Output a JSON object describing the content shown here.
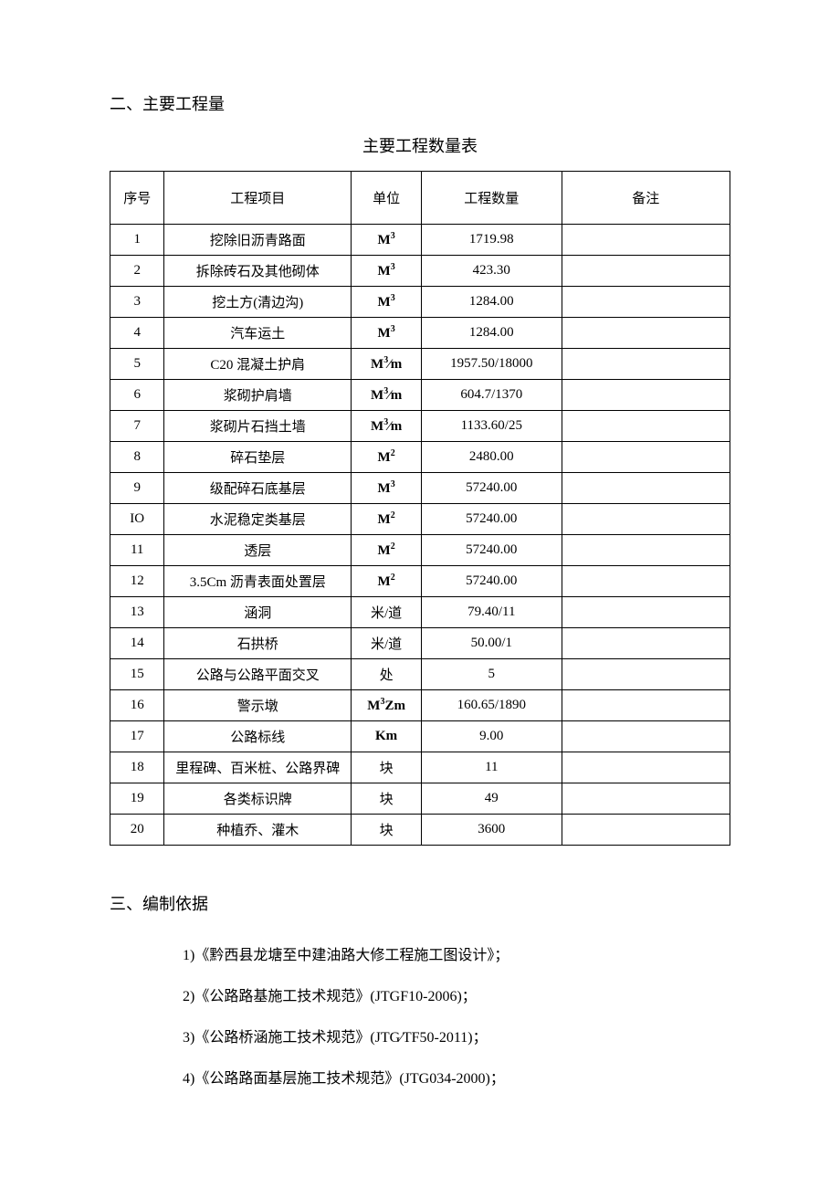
{
  "section2": {
    "title": "二、主要工程量",
    "table_title": "主要工程数量表",
    "columns": [
      "序号",
      "工程项目",
      "单位",
      "工程数量",
      "备注"
    ],
    "rows": [
      {
        "seq": "1",
        "item": "挖除旧沥青路面",
        "unit_html": "M<sup>3</sup>",
        "qty": "1719.98",
        "remark": ""
      },
      {
        "seq": "2",
        "item": "拆除砖石及其他砌体",
        "unit_html": "M<sup>3</sup>",
        "qty": "423.30",
        "remark": ""
      },
      {
        "seq": "3",
        "item": "挖土方(清边沟)",
        "unit_html": "M<sup>3</sup>",
        "qty": "1284.00",
        "remark": ""
      },
      {
        "seq": "4",
        "item": "汽车运土",
        "unit_html": "M<sup>3</sup>",
        "qty": "1284.00",
        "remark": ""
      },
      {
        "seq": "5",
        "item": "C20 混凝土护肩",
        "unit_html": "M<sup>3</sup>⁄m",
        "qty": "1957.50/18000",
        "remark": ""
      },
      {
        "seq": "6",
        "item": "浆砌护肩墙",
        "unit_html": "M<sup>3</sup>⁄m",
        "qty": "604.7/1370",
        "remark": ""
      },
      {
        "seq": "7",
        "item": "浆砌片石挡土墙",
        "unit_html": "M<sup>3</sup>⁄m",
        "qty": "1133.60/25",
        "remark": ""
      },
      {
        "seq": "8",
        "item": "碎石垫层",
        "unit_html": "M<sup>2</sup>",
        "qty": "2480.00",
        "remark": ""
      },
      {
        "seq": "9",
        "item": "级配碎石底基层",
        "unit_html": "M<sup>3</sup>",
        "qty": "57240.00",
        "remark": ""
      },
      {
        "seq": "IO",
        "item": "水泥稳定类基层",
        "unit_html": "M<sup>2</sup>",
        "qty": "57240.00",
        "remark": ""
      },
      {
        "seq": "11",
        "item": "透层",
        "unit_html": "M<sup>2</sup>",
        "qty": "57240.00",
        "remark": ""
      },
      {
        "seq": "12",
        "item": "3.5Cm 沥青表面处置层",
        "unit_html": "M<sup>2</sup>",
        "qty": "57240.00",
        "remark": ""
      },
      {
        "seq": "13",
        "item": "涵洞",
        "unit_html": "米/道",
        "qty": "79.40/11",
        "remark": ""
      },
      {
        "seq": "14",
        "item": "石拱桥",
        "unit_html": "米/道",
        "qty": "50.00/1",
        "remark": ""
      },
      {
        "seq": "15",
        "item": "公路与公路平面交叉",
        "unit_html": "处",
        "qty": "5",
        "remark": ""
      },
      {
        "seq": "16",
        "item": "警示墩",
        "unit_html": "M<sup>3</sup>Zm",
        "qty": "160.65/1890",
        "remark": ""
      },
      {
        "seq": "17",
        "item": "公路标线",
        "unit_html": "Km",
        "qty": "9.00",
        "remark": ""
      },
      {
        "seq": "18",
        "item": "里程碑、百米桩、公路界碑",
        "unit_html": "块",
        "qty": "11",
        "remark": ""
      },
      {
        "seq": "19",
        "item": "各类标识牌",
        "unit_html": "块",
        "qty": "49",
        "remark": ""
      },
      {
        "seq": "20",
        "item": "种植乔、灌木",
        "unit_html": "块",
        "qty": "3600",
        "remark": ""
      }
    ]
  },
  "section3": {
    "title": "三、编制依据",
    "items": [
      "1)《黔西县龙塘至中建油路大修工程施工图设计》；",
      "2)《公路路基施工技术规范》(JTGF10-2006)；",
      "3)《公路桥涵施工技术规范》(JTG⁄TF50-2011)；",
      "4)《公路路面基层施工技术规范》(JTG034-2000)；"
    ]
  }
}
